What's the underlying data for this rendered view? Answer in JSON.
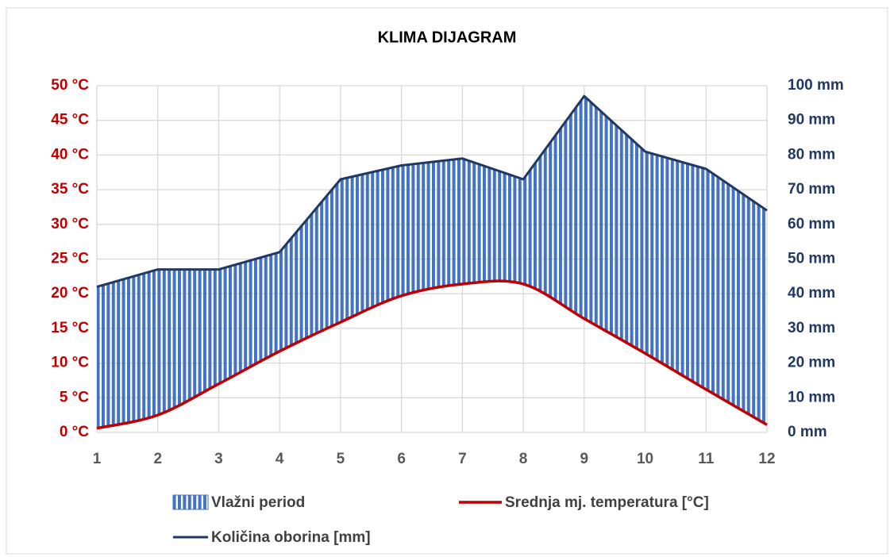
{
  "chart_data": {
    "type": "climate",
    "title": "KLIMA DIJAGRAM",
    "categories": [
      "1",
      "2",
      "3",
      "4",
      "5",
      "6",
      "7",
      "8",
      "9",
      "10",
      "11",
      "12"
    ],
    "series": [
      {
        "name": "Srednja mj. temperatura [°C]",
        "color": "#c00000",
        "axis": "y",
        "smooth": true,
        "values": [
          0.6,
          2.5,
          7,
          11.7,
          15.9,
          19.7,
          21.4,
          21.4,
          16.4,
          11.4,
          6.2,
          1.1
        ]
      },
      {
        "name": "Količina oborina [mm]",
        "color": "#203864",
        "axis": "y2",
        "values": [
          42,
          47,
          47,
          52,
          73,
          77,
          79,
          73,
          97,
          81,
          76,
          64
        ]
      }
    ],
    "fill_between": {
      "name": "Vlažni period",
      "color": "#4472c4"
    },
    "ylim": [
      0,
      50
    ],
    "yticks": [
      {
        "value": 0,
        "label": "0 °C"
      },
      {
        "value": 5,
        "label": "5 °C"
      },
      {
        "value": 10,
        "label": "10 °C"
      },
      {
        "value": 15,
        "label": "15 °C"
      },
      {
        "value": 20,
        "label": "20 °C"
      },
      {
        "value": 25,
        "label": "25 °C"
      },
      {
        "value": 30,
        "label": "30 °C"
      },
      {
        "value": 35,
        "label": "35 °C"
      },
      {
        "value": 40,
        "label": "40 °C"
      },
      {
        "value": 45,
        "label": "45 °C"
      },
      {
        "value": 50,
        "label": "50 °C"
      }
    ],
    "y2lim": [
      0,
      100
    ],
    "y2ticks": [
      {
        "value": 0,
        "label": "0 mm"
      },
      {
        "value": 10,
        "label": "10 mm"
      },
      {
        "value": 20,
        "label": "20 mm"
      },
      {
        "value": 30,
        "label": "30 mm"
      },
      {
        "value": 40,
        "label": "40 mm"
      },
      {
        "value": 50,
        "label": "50 mm"
      },
      {
        "value": 60,
        "label": "60 mm"
      },
      {
        "value": 70,
        "label": "70 mm"
      },
      {
        "value": 80,
        "label": "80 mm"
      },
      {
        "value": 90,
        "label": "90 mm"
      },
      {
        "value": 100,
        "label": "100 mm"
      }
    ],
    "grid": true,
    "legend": "bottom"
  }
}
